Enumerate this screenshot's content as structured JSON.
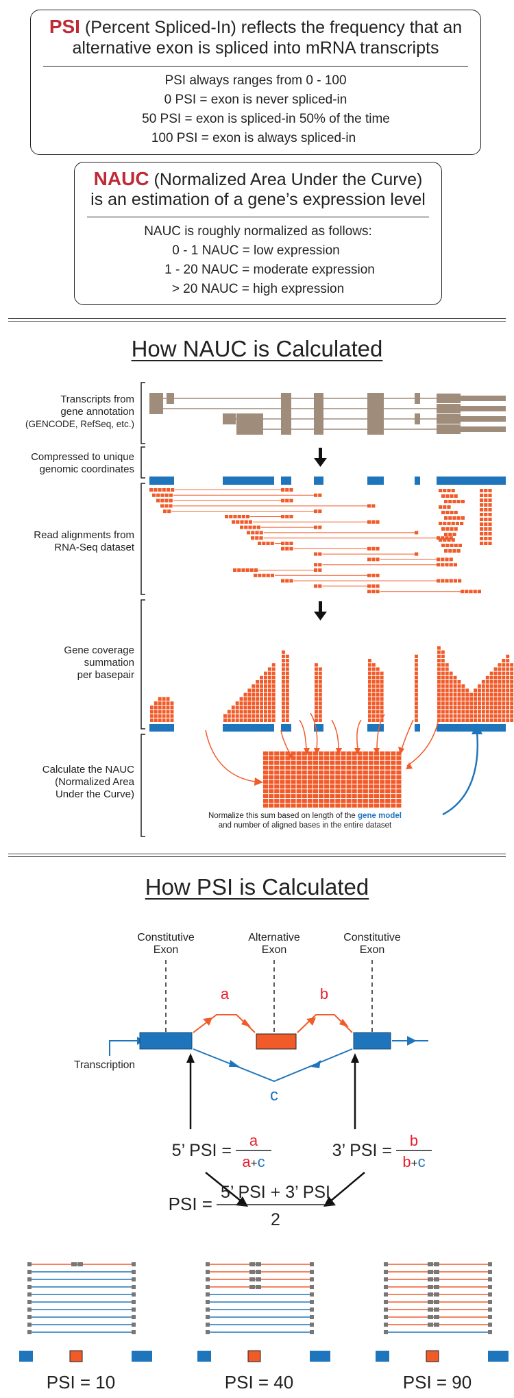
{
  "colors": {
    "orange": "#f15a29",
    "blue": "#1f75bc",
    "tan": "#a08c7a",
    "red": "#be2a35",
    "gray": "#777777",
    "dark": "#222222"
  },
  "psi_box": {
    "acronym": "PSI",
    "title_rest": " (Percent Spliced-In) reflects the frequency that an",
    "title_line2": "alternative exon is spliced into mRNA transcripts",
    "lines": [
      "PSI always ranges from 0 - 100",
      "0 PSI = exon is never spliced-in",
      "50 PSI = exon is spliced-in 50% of the time",
      "100 PSI = exon is always spliced-in"
    ]
  },
  "nauc_box": {
    "acronym": "NAUC",
    "title_rest": " (Normalized Area Under the Curve)",
    "title_line2": "is an estimation of a gene’s expression level",
    "lines": [
      "NAUC is roughly normalized as follows:",
      "0 - 1 NAUC = low expression",
      "1 - 20 NAUC = moderate expression",
      "> 20 NAUC = high expression"
    ]
  },
  "nauc_section": {
    "title": "How NAUC is Calculated",
    "step_transcripts": [
      "Transcripts from",
      "gene annotation",
      "(GENCODE, RefSeq, etc.)"
    ],
    "step_compressed": [
      "Compressed to unique",
      "genomic coordinates"
    ],
    "step_reads": [
      "Read alignments from",
      "RNA-Seq dataset"
    ],
    "step_coverage": [
      "Gene coverage",
      "summation",
      "per basepair"
    ],
    "step_nauc": [
      "Calculate the NAUC",
      "(Normalized Area",
      "Under the Curve)"
    ],
    "normalize_pre": "Normalize this sum based on length of the ",
    "normalize_em": "gene model",
    "normalize_line2": "and number of aligned bases in the entire dataset"
  },
  "psi_section": {
    "title": "How PSI is Calculated",
    "label_const_left": [
      "Constitutive",
      "Exon"
    ],
    "label_alt": [
      "Alternative",
      "Exon"
    ],
    "label_const_right": [
      "Constitutive",
      "Exon"
    ],
    "junction_a": "a",
    "junction_b": "b",
    "junction_c": "c",
    "transcription": "Transcription",
    "five_psi": "5’ PSI =",
    "three_psi": "3’ PSI =",
    "plus": "+",
    "psi_eq": "PSI =",
    "psi_numer": "5’ PSI + 3’ PSI",
    "psi_denom": "2"
  },
  "examples": [
    {
      "label": "PSI = 10",
      "value": 10
    },
    {
      "label": "PSI = 40",
      "value": 40
    },
    {
      "label": "PSI = 90",
      "value": 90
    }
  ]
}
